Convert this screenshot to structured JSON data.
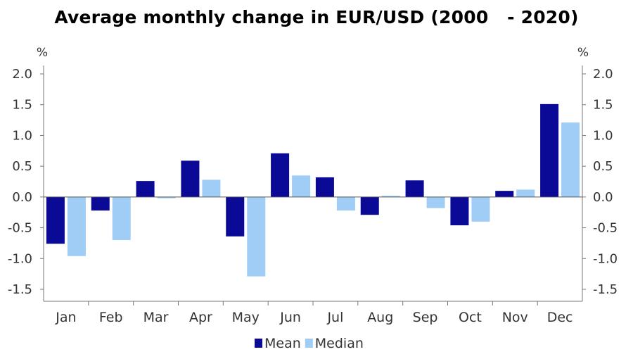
{
  "chart_data": {
    "type": "bar",
    "title": "Average monthly change in EUR/USD (2000   - 2020)",
    "y_unit_left": "%",
    "y_unit_right": "%",
    "categories": [
      "Jan",
      "Feb",
      "Mar",
      "Apr",
      "May",
      "Jun",
      "Jul",
      "Aug",
      "Sep",
      "Oct",
      "Nov",
      "Dec"
    ],
    "series": [
      {
        "name": "Mean",
        "color": "#0a0a96",
        "values": [
          -0.76,
          -0.22,
          0.26,
          0.59,
          -0.64,
          0.71,
          0.32,
          -0.29,
          0.27,
          -0.46,
          0.1,
          1.51
        ]
      },
      {
        "name": "Median",
        "color": "#9fcdf6",
        "values": [
          -0.96,
          -0.7,
          -0.02,
          0.28,
          -1.29,
          0.35,
          -0.22,
          0.02,
          -0.18,
          -0.4,
          0.12,
          1.21
        ]
      }
    ],
    "ylim": [
      -1.5,
      2.0
    ],
    "yticks": [
      "2.0",
      "1.5",
      "1.0",
      "0.5",
      "0.0",
      "-0.5",
      "-1.0",
      "-1.5"
    ],
    "ytick_values": [
      2.0,
      1.5,
      1.0,
      0.5,
      0.0,
      -0.5,
      -1.0,
      -1.5
    ],
    "legend": "bottom-center",
    "grid": false
  }
}
